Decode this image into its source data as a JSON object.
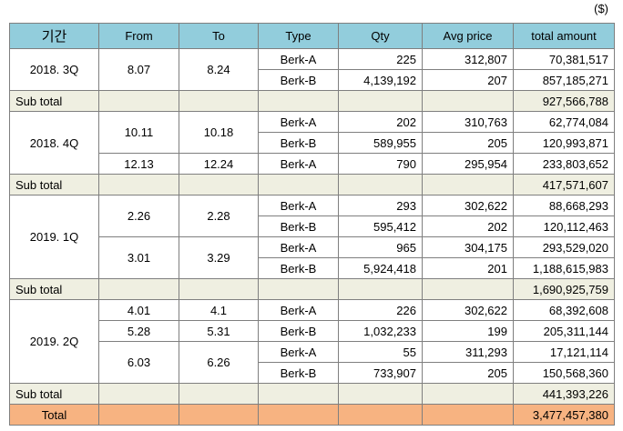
{
  "currency_note": "($)",
  "headers": [
    "기간",
    "From",
    "To",
    "Type",
    "Qty",
    "Avg price",
    "total amount"
  ],
  "q3": {
    "period": "2018. 3Q",
    "from": "8.07",
    "to": "8.24",
    "r1": {
      "type": "Berk-A",
      "qty": "225",
      "price": "312,807",
      "amount": "70,381,517"
    },
    "r2": {
      "type": "Berk-B",
      "qty": "4,139,192",
      "price": "207",
      "amount": "857,185,271"
    },
    "subtotal_label": "Sub total",
    "subtotal": "927,566,788"
  },
  "q4": {
    "period": "2018. 4Q",
    "g1_from": "10.11",
    "g1_to": "10.18",
    "r1": {
      "type": "Berk-A",
      "qty": "202",
      "price": "310,763",
      "amount": "62,774,084"
    },
    "r2": {
      "type": "Berk-B",
      "qty": "589,955",
      "price": "205",
      "amount": "120,993,871"
    },
    "g2_from": "12.13",
    "g2_to": "12.24",
    "r3": {
      "type": "Berk-A",
      "qty": "790",
      "price": "295,954",
      "amount": "233,803,652"
    },
    "subtotal_label": "Sub total",
    "subtotal": "417,571,607"
  },
  "q1": {
    "period": "2019. 1Q",
    "g1_from": "2.26",
    "g1_to": "2.28",
    "r1": {
      "type": "Berk-A",
      "qty": "293",
      "price": "302,622",
      "amount": "88,668,293"
    },
    "r2": {
      "type": "Berk-B",
      "qty": "595,412",
      "price": "202",
      "amount": "120,112,463"
    },
    "g2_from": "3.01",
    "g2_to": "3.29",
    "r3": {
      "type": "Berk-A",
      "qty": "965",
      "price": "304,175",
      "amount": "293,529,020"
    },
    "r4": {
      "type": "Berk-B",
      "qty": "5,924,418",
      "price": "201",
      "amount": "1,188,615,983"
    },
    "subtotal_label": "Sub total",
    "subtotal": "1,690,925,759"
  },
  "q2": {
    "period": "2019. 2Q",
    "g1_from": "4.01",
    "g1_to": "4.1",
    "r1": {
      "type": "Berk-A",
      "qty": "226",
      "price": "302,622",
      "amount": "68,392,608"
    },
    "g2_from": "5.28",
    "g2_to": "5.31",
    "r2": {
      "type": "Berk-B",
      "qty": "1,032,233",
      "price": "199",
      "amount": "205,311,144"
    },
    "g3_from": "6.03",
    "g3_to": "6.26",
    "r3": {
      "type": "Berk-A",
      "qty": "55",
      "price": "311,293",
      "amount": "17,121,114"
    },
    "r4": {
      "type": "Berk-B",
      "qty": "733,907",
      "price": "205",
      "amount": "150,568,360"
    },
    "subtotal_label": "Sub total",
    "subtotal": "441,393,226"
  },
  "total": {
    "label": "Total",
    "amount": "3,477,457,380"
  },
  "colors": {
    "header": "#92cddc",
    "subtotal": "#efefe1",
    "total": "#f7b381"
  }
}
